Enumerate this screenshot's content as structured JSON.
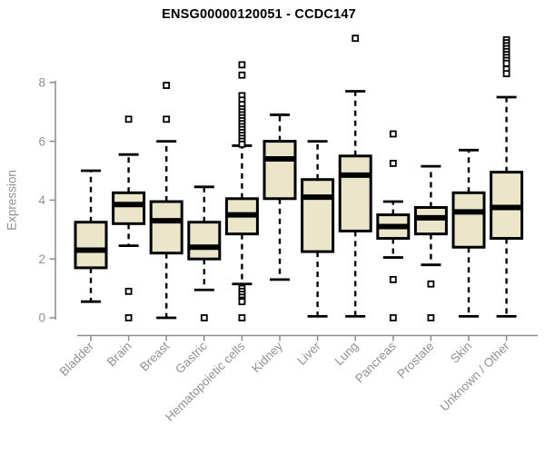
{
  "title": "ENSG00000120051 - CCDC147",
  "y_axis": {
    "label": "Expression"
  },
  "chart_data": {
    "type": "boxplot",
    "title": "ENSG00000120051 - CCDC147",
    "xlabel": "",
    "ylabel": "Expression",
    "ylim": [
      0,
      9.7
    ],
    "yticks": [
      0,
      2,
      4,
      6,
      8
    ],
    "grid": false,
    "legend": "none",
    "categories": [
      "Bladder",
      "Brain",
      "Breast",
      "Gastric",
      "Hematopoietic cells",
      "Kidney",
      "Liver",
      "Lung",
      "Pancreas",
      "Prostate",
      "Skin",
      "Unknown / Other"
    ],
    "series": [
      {
        "category": "Bladder",
        "whisker_low": 0.55,
        "q1": 1.7,
        "median": 2.3,
        "q3": 3.25,
        "whisker_high": 5.0,
        "outliers": []
      },
      {
        "category": "Brain",
        "whisker_low": 2.45,
        "q1": 3.2,
        "median": 3.85,
        "q3": 4.25,
        "whisker_high": 5.55,
        "outliers": [
          6.75,
          0.9,
          0
        ]
      },
      {
        "category": "Breast",
        "whisker_low": 0.0,
        "q1": 2.2,
        "median": 3.3,
        "q3": 3.95,
        "whisker_high": 6.0,
        "outliers": [
          7.9,
          6.75
        ]
      },
      {
        "category": "Gastric",
        "whisker_low": 0.95,
        "q1": 2.0,
        "median": 2.4,
        "q3": 3.25,
        "whisker_high": 4.45,
        "outliers": [
          0
        ]
      },
      {
        "category": "Hematopoietic cells",
        "whisker_low": 1.15,
        "q1": 2.85,
        "median": 3.5,
        "q3": 4.05,
        "whisker_high": 5.85,
        "outliers": [
          8.6,
          8.25,
          7.55,
          7.4,
          7.25,
          7.1,
          7.0,
          6.9,
          6.8,
          6.7,
          6.6,
          6.5,
          6.4,
          6.3,
          6.2,
          6.1,
          6.0,
          5.9,
          1.0,
          0.9,
          0.8,
          0.7,
          0.6,
          0.55,
          0
        ]
      },
      {
        "category": "Kidney",
        "whisker_low": 1.3,
        "q1": 4.05,
        "median": 5.4,
        "q3": 6.0,
        "whisker_high": 6.9,
        "outliers": []
      },
      {
        "category": "Liver",
        "whisker_low": 0.05,
        "q1": 2.25,
        "median": 4.1,
        "q3": 4.7,
        "whisker_high": 6.0,
        "outliers": []
      },
      {
        "category": "Lung",
        "whisker_low": 0.05,
        "q1": 2.95,
        "median": 4.85,
        "q3": 5.5,
        "whisker_high": 7.7,
        "outliers": [
          9.5
        ]
      },
      {
        "category": "Pancreas",
        "whisker_low": 2.05,
        "q1": 2.7,
        "median": 3.1,
        "q3": 3.5,
        "whisker_high": 3.95,
        "outliers": [
          6.25,
          5.25,
          1.3,
          0
        ]
      },
      {
        "category": "Prostate",
        "whisker_low": 1.8,
        "q1": 2.85,
        "median": 3.4,
        "q3": 3.75,
        "whisker_high": 5.15,
        "outliers": [
          1.15,
          0
        ]
      },
      {
        "category": "Skin",
        "whisker_low": 0.05,
        "q1": 2.4,
        "median": 3.6,
        "q3": 4.25,
        "whisker_high": 5.7,
        "outliers": []
      },
      {
        "category": "Unknown / Other",
        "whisker_low": 0.05,
        "q1": 2.7,
        "median": 3.75,
        "q3": 4.95,
        "whisker_high": 7.5,
        "outliers": [
          9.45,
          9.35,
          9.25,
          9.15,
          9.05,
          8.95,
          8.85,
          8.75,
          8.65,
          8.45,
          8.3
        ]
      }
    ],
    "colors": {
      "box_fill": "#EBE5C9",
      "box_border": "#000000",
      "median": "#000000",
      "whisker": "#000000",
      "outlier_fill": "#ffffff",
      "outlier_border": "#000000",
      "axis_line": "#8c8c8c",
      "tick_text": "#919191",
      "title_text": "#000000",
      "background": "#ffffff"
    }
  }
}
